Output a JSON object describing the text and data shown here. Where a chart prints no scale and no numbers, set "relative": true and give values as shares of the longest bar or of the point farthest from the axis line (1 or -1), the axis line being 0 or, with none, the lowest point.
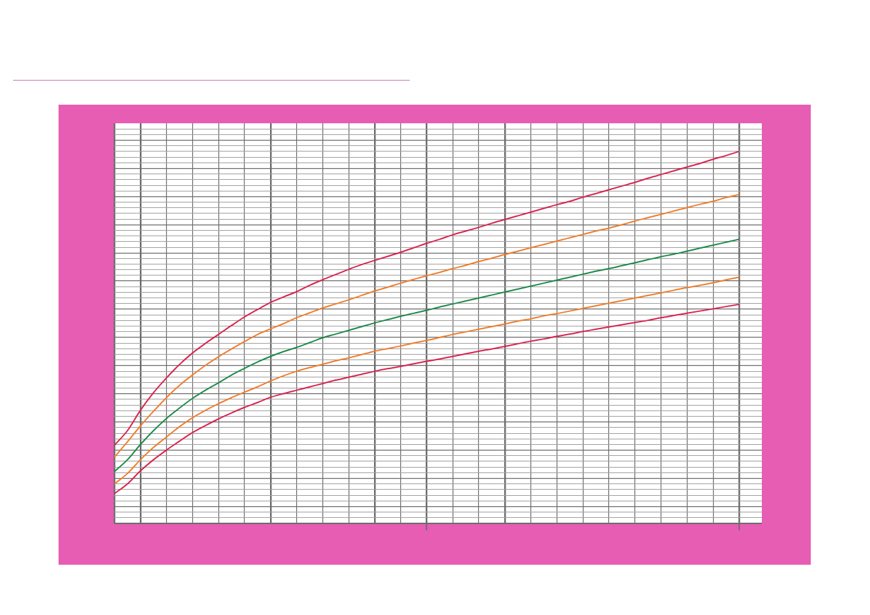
{
  "chart_data": {
    "type": "line",
    "relative": true,
    "grid": true,
    "legend": false,
    "marker": "none",
    "line_style": "solid",
    "tick_labels": false,
    "categories": [
      null,
      null,
      null,
      null,
      null,
      null,
      null,
      null,
      null,
      null,
      null,
      null,
      null,
      null,
      null,
      null,
      null,
      null,
      null,
      null,
      null,
      null,
      null,
      null,
      null,
      null,
      null,
      null,
      null,
      null,
      null,
      null,
      null,
      null,
      null,
      null,
      null,
      null,
      null,
      null,
      null,
      null,
      null,
      null,
      null,
      null,
      null,
      null,
      null
    ],
    "series": [
      {
        "color": "#d9234f",
        "values": [
          0.21,
          0.249,
          0.304,
          0.351,
          0.391,
          0.427,
          0.458,
          0.484,
          0.508,
          0.532,
          0.555,
          0.575,
          0.594,
          0.609,
          0.623,
          0.64,
          0.655,
          0.669,
          0.683,
          0.696,
          0.707,
          0.718,
          0.729,
          0.741,
          0.753,
          0.764,
          0.776,
          0.786,
          0.796,
          0.807,
          0.817,
          0.827,
          0.837,
          0.847,
          0.857,
          0.866,
          0.877,
          0.887,
          0.897,
          0.907,
          0.917,
          0.928,
          0.938,
          0.948,
          0.958,
          0.968,
          0.979,
          0.989,
          1
        ]
      },
      {
        "color": "#f07d2c",
        "values": [
          0.178,
          0.219,
          0.262,
          0.301,
          0.338,
          0.371,
          0.399,
          0.425,
          0.448,
          0.469,
          0.489,
          0.508,
          0.523,
          0.537,
          0.553,
          0.566,
          0.579,
          0.59,
          0.601,
          0.613,
          0.625,
          0.635,
          0.646,
          0.656,
          0.666,
          0.675,
          0.685,
          0.694,
          0.704,
          0.713,
          0.723,
          0.732,
          0.741,
          0.75,
          0.759,
          0.768,
          0.777,
          0.786,
          0.794,
          0.803,
          0.813,
          0.822,
          0.831,
          0.84,
          0.849,
          0.858,
          0.866,
          0.876,
          0.884
        ]
      },
      {
        "color": "#1c8a4a",
        "values": [
          0.139,
          0.171,
          0.212,
          0.249,
          0.282,
          0.31,
          0.336,
          0.358,
          0.378,
          0.399,
          0.417,
          0.434,
          0.449,
          0.462,
          0.473,
          0.486,
          0.499,
          0.509,
          0.519,
          0.529,
          0.539,
          0.548,
          0.557,
          0.565,
          0.573,
          0.582,
          0.59,
          0.598,
          0.606,
          0.614,
          0.622,
          0.63,
          0.638,
          0.646,
          0.654,
          0.662,
          0.67,
          0.678,
          0.685,
          0.693,
          0.701,
          0.709,
          0.717,
          0.724,
          0.732,
          0.74,
          0.748,
          0.756,
          0.764
        ]
      },
      {
        "color": "#f07d2c",
        "values": [
          0.106,
          0.134,
          0.171,
          0.204,
          0.232,
          0.26,
          0.284,
          0.304,
          0.322,
          0.338,
          0.353,
          0.367,
          0.383,
          0.397,
          0.409,
          0.419,
          0.428,
          0.437,
          0.445,
          0.454,
          0.463,
          0.47,
          0.477,
          0.485,
          0.492,
          0.5,
          0.508,
          0.515,
          0.522,
          0.529,
          0.536,
          0.544,
          0.55,
          0.558,
          0.564,
          0.571,
          0.578,
          0.585,
          0.592,
          0.599,
          0.606,
          0.613,
          0.62,
          0.627,
          0.634,
          0.64,
          0.647,
          0.655,
          0.662
        ]
      },
      {
        "color": "#d9234f",
        "values": [
          0.08,
          0.106,
          0.141,
          0.171,
          0.197,
          0.221,
          0.244,
          0.263,
          0.281,
          0.297,
          0.312,
          0.325,
          0.339,
          0.349,
          0.358,
          0.367,
          0.376,
          0.385,
          0.393,
          0.401,
          0.409,
          0.416,
          0.422,
          0.429,
          0.436,
          0.442,
          0.449,
          0.456,
          0.463,
          0.469,
          0.476,
          0.483,
          0.49,
          0.496,
          0.503,
          0.509,
          0.516,
          0.522,
          0.528,
          0.534,
          0.54,
          0.546,
          0.553,
          0.559,
          0.565,
          0.571,
          0.577,
          0.583,
          0.589
        ]
      }
    ]
  }
}
